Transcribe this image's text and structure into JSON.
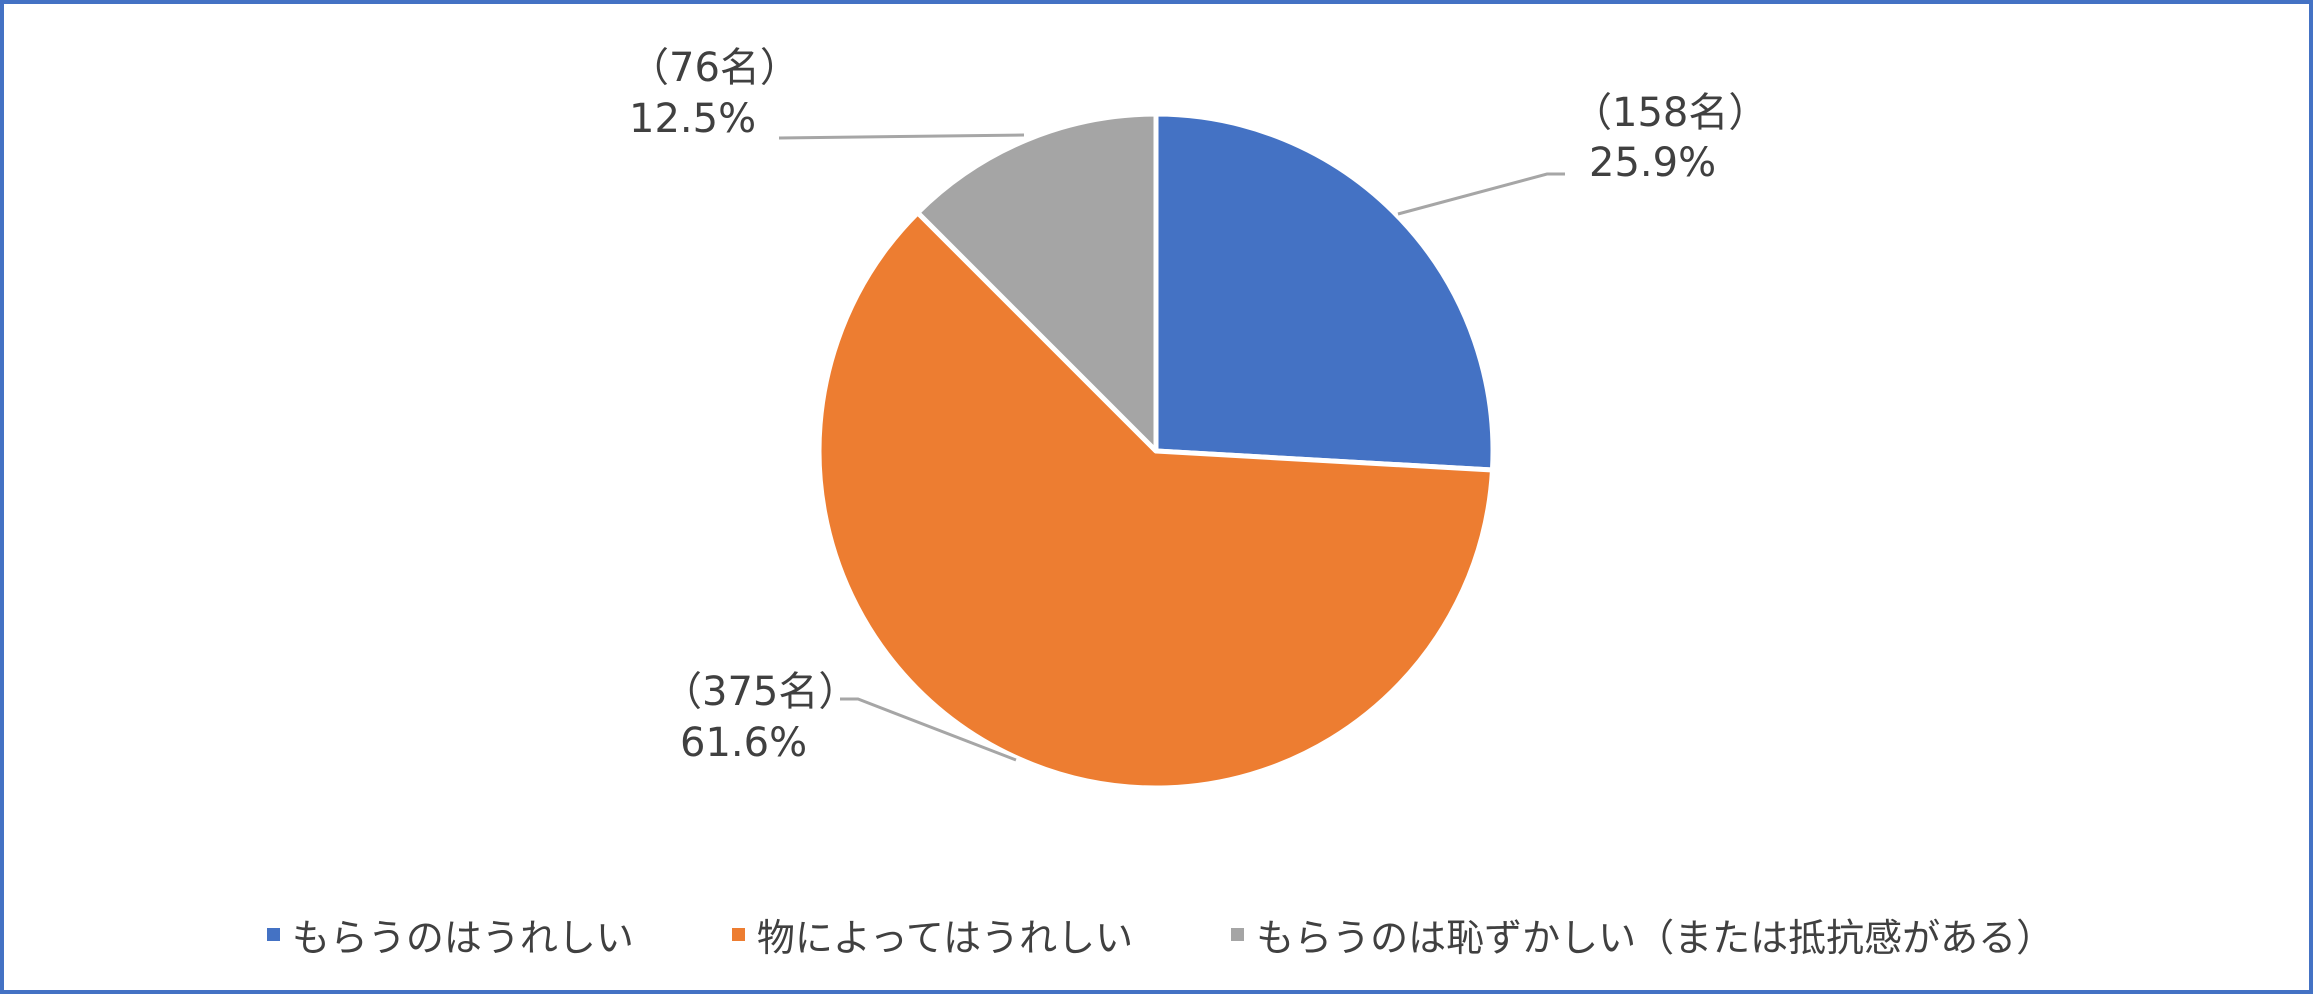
{
  "chart_data": {
    "type": "pie",
    "title": "",
    "slices": [
      {
        "label": "もらうのはうれしい",
        "count_label": "（158名）",
        "percent_label": "25.9%",
        "value": 25.9,
        "color": "#4472C4"
      },
      {
        "label": "物によってはうれしい",
        "count_label": "（375名）",
        "percent_label": "61.6%",
        "value": 61.6,
        "color": "#ED7D31"
      },
      {
        "label": "もらうのは恥ずかしい（または抵抗感がある）",
        "count_label": "（76名）",
        "percent_label": "12.5%",
        "value": 12.5,
        "color": "#A5A5A5"
      }
    ],
    "legend_position": "bottom",
    "start_angle": "12 o'clock",
    "direction": "clockwise"
  }
}
